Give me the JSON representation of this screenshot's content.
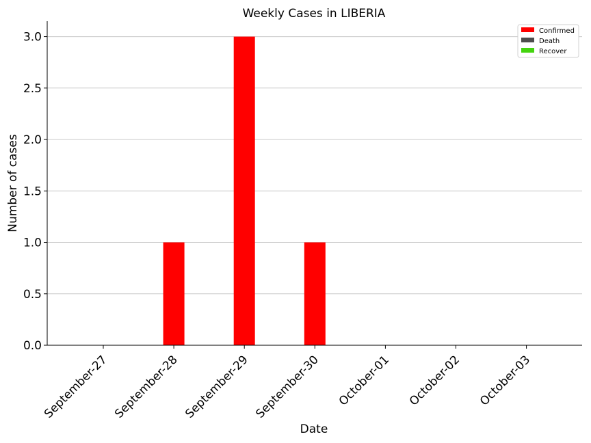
{
  "chart_data": {
    "type": "bar",
    "title": "Weekly Cases in LIBERIA",
    "xlabel": "Date",
    "ylabel": "Number of cases",
    "categories": [
      "September-27",
      "September-28",
      "September-29",
      "September-30",
      "October-01",
      "October-02",
      "October-03"
    ],
    "series": [
      {
        "name": "Confirmed",
        "color": "#ff0000",
        "values": [
          0,
          1,
          3,
          1,
          0,
          0,
          0
        ]
      },
      {
        "name": "Death",
        "color": "#4d4d4d",
        "values": [
          0,
          0,
          0,
          0,
          0,
          0,
          0
        ]
      },
      {
        "name": "Recover",
        "color": "#44d40f",
        "values": [
          0,
          0,
          0,
          0,
          0,
          0,
          0
        ]
      }
    ],
    "ylim": [
      0,
      3.15
    ],
    "yticks": [
      "0.0",
      "0.5",
      "1.0",
      "1.5",
      "2.0",
      "2.5",
      "3.0"
    ],
    "grid": "horizontal",
    "legend_position": "top-right"
  }
}
